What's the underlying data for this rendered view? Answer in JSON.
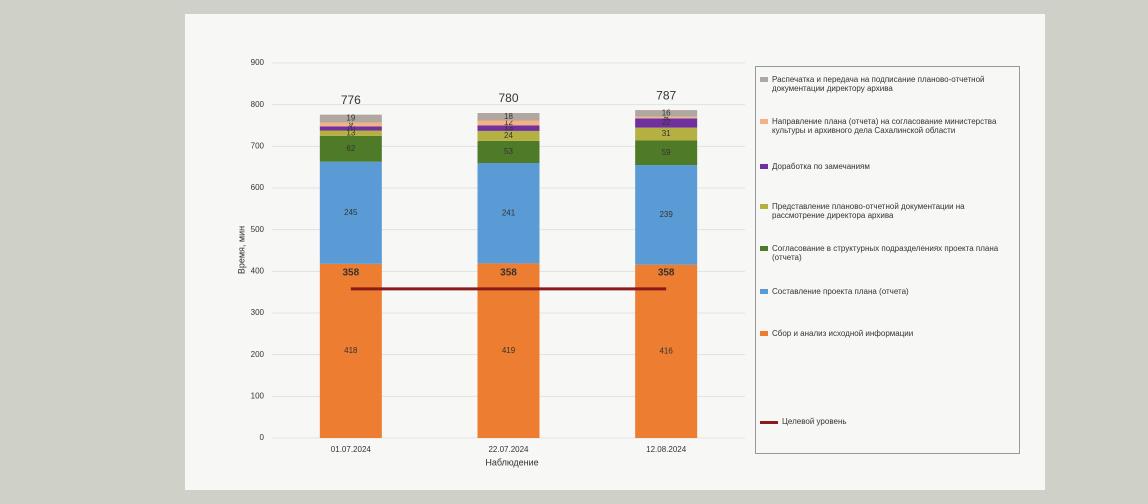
{
  "chart_data": {
    "type": "stacked_bar",
    "y_label": "Время, мин",
    "x_label": "Наблюдение",
    "categories": [
      "01.07.2024",
      "22.07.2024",
      "12.08.2024"
    ],
    "ylim": [
      0,
      900
    ],
    "yticks": [
      0,
      100,
      200,
      300,
      400,
      500,
      600,
      700,
      800,
      900
    ],
    "series": [
      {
        "name": "Сбор и анализ исходной информации",
        "color": "#ed7d31",
        "values": [
          418,
          419,
          416
        ]
      },
      {
        "name": "Составление проекта плана (отчета)",
        "color": "#5b9bd5",
        "values": [
          245,
          241,
          239
        ]
      },
      {
        "name": "Согласование в структурных подразделениях проекта плана (отчета)",
        "color": "#4f7a28",
        "values": [
          62,
          53,
          59
        ]
      },
      {
        "name": "Представление планово-отчетной документации на рассмотрение директора архива",
        "color": "#b5b042",
        "values": [
          13,
          24,
          31
        ]
      },
      {
        "name": "Доработка по замечаниям",
        "color": "#7030a0",
        "values": [
          10,
          13,
          22
        ]
      },
      {
        "name": "Направление плана (отчета) на согласование министерства культуры и архивного дела Сахалинской области",
        "color": "#f4b183",
        "values": [
          9,
          12,
          4
        ]
      },
      {
        "name": "Распечатка и передача на подписание планово-отчетной документации директору архива",
        "color": "#b0a8a0",
        "values": [
          19,
          18,
          16
        ]
      }
    ],
    "totals": [
      776,
      780,
      787
    ],
    "target": {
      "name": "Целевой уровень",
      "color": "#8b1a1a",
      "values": [
        358,
        358,
        358
      ]
    }
  }
}
